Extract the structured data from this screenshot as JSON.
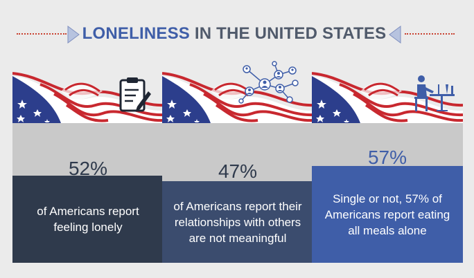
{
  "header": {
    "title_part1": "LONELINESS",
    "title_part2": " IN THE UNITED STATES"
  },
  "colors": {
    "blue": "#3f5ea8",
    "navy": "#2f3a4c",
    "slate": "#3b4c6e",
    "red": "#c8282f",
    "background": "#ebebeb",
    "gray_panel": "#c9c9c9"
  },
  "cards": [
    {
      "percent": "52%",
      "text": "of Americans report feeling lonely",
      "icon": "clipboard-icon"
    },
    {
      "percent": "47%",
      "text": "of Americans report their relationships with others are not meaningful",
      "icon": "network-icon"
    },
    {
      "percent": "57%",
      "text": "Single or not, 57% of Americans report eating all meals alone",
      "icon": "dining-alone-icon"
    }
  ]
}
